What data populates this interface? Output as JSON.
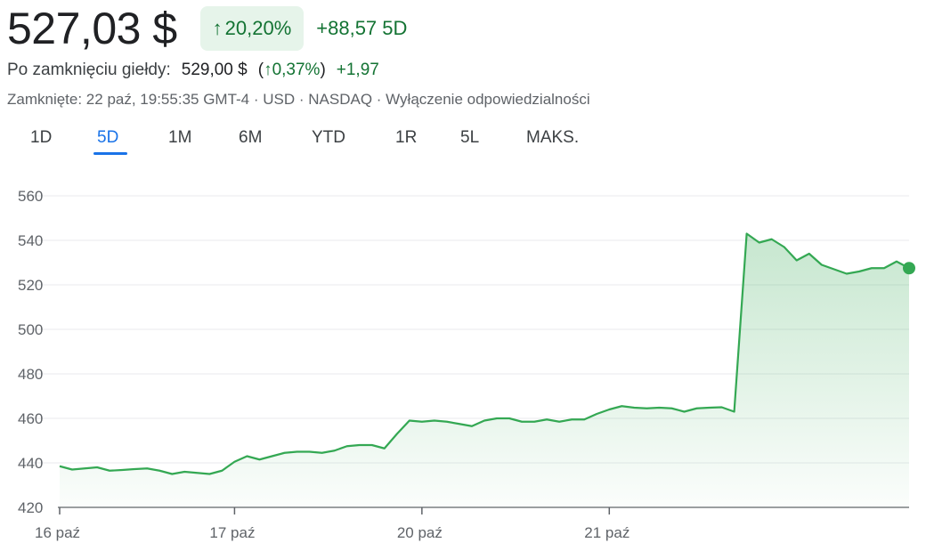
{
  "quote": {
    "price": "527,03 $",
    "change_arrow": "↑",
    "change_pct": "20,20%",
    "change_abs": "+88,57 5D",
    "after_hours_label": "Po zamknięciu giełdy:",
    "after_hours_price": "529,00 $",
    "after_hours_open": "(",
    "after_hours_arrow": "↑",
    "after_hours_pct": "0,37%",
    "after_hours_close": ")",
    "after_hours_abs": "+1,97",
    "meta": "Zamknięte: 22 paź, 19:55:35 GMT-4 · USD · NASDAQ · Wyłączenie odpowiedzialności"
  },
  "ranges": {
    "tabs": [
      "1D",
      "5D",
      "1M",
      "6M",
      "YTD",
      "1R",
      "5L",
      "MAKS."
    ],
    "active_index": 1
  },
  "colors": {
    "up": "#137333",
    "up_bg": "#e6f4ea",
    "line": "#34a853",
    "active_tab": "#1a73e8"
  },
  "chart_data": {
    "type": "area",
    "title": "",
    "xlabel": "",
    "ylabel": "",
    "ylim": [
      420,
      560
    ],
    "yticks": [
      420,
      440,
      460,
      480,
      500,
      520,
      540,
      560
    ],
    "xticks": [
      {
        "label": "16 paź",
        "index": 0
      },
      {
        "label": "17 paź",
        "index": 14
      },
      {
        "label": "20 paź",
        "index": 29
      },
      {
        "label": "21 paź",
        "index": 44
      }
    ],
    "grid": true,
    "series": [
      {
        "values": [
          438.5,
          437,
          437.5,
          438,
          436.5,
          436.8,
          437.2,
          437.5,
          436.5,
          435,
          436,
          435.5,
          435,
          436.5,
          440.5,
          443,
          441.5,
          443,
          444.5,
          445,
          445,
          444.5,
          445.5,
          447.5,
          448,
          448,
          446.5,
          453,
          459,
          458.5,
          459,
          458.5,
          457.5,
          456.5,
          459,
          460,
          460,
          458.5,
          458.5,
          459.5,
          458.5,
          459.5,
          459.5,
          462,
          464,
          465.5,
          464.8,
          464.5,
          464.8,
          464.5,
          463,
          464.5,
          464.8,
          465,
          463,
          543,
          539,
          540.5,
          537,
          531,
          534,
          529,
          527,
          525,
          526,
          527.5,
          527.5,
          530.5,
          527.5
        ]
      }
    ]
  }
}
